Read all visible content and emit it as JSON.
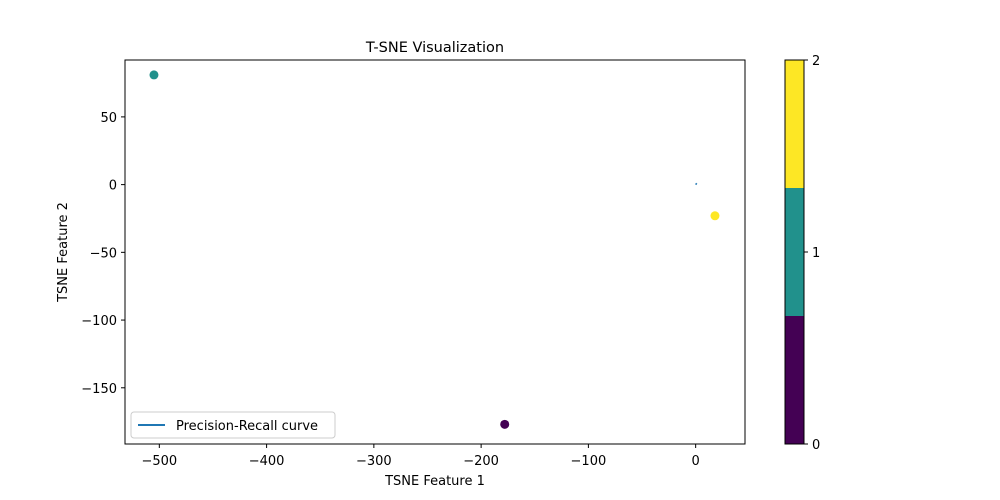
{
  "chart_data": {
    "type": "scatter",
    "title": "T-SNE Visualization",
    "xlabel": "TSNE Feature 1",
    "ylabel": "TSNE Feature 2",
    "xlim": [
      -532,
      46
    ],
    "ylim": [
      -191.5,
      92
    ],
    "xticks": [
      -500,
      -400,
      -300,
      -200,
      -100,
      0
    ],
    "xtick_labels": [
      "−500",
      "−400",
      "−300",
      "−200",
      "−100",
      "0"
    ],
    "yticks": [
      -150,
      -100,
      -50,
      0,
      50
    ],
    "ytick_labels": [
      "−150",
      "−100",
      "−50",
      "0",
      "50"
    ],
    "grid": false,
    "legend": {
      "position": "lower-left",
      "entries": [
        "Precision-Recall curve"
      ]
    },
    "points": [
      {
        "x": -505,
        "y": 81,
        "label": 1
      },
      {
        "x": -178,
        "y": -177,
        "label": 0
      },
      {
        "x": 18,
        "y": -23,
        "label": 2
      }
    ],
    "series": [
      {
        "name": "Precision-Recall curve",
        "type": "line",
        "x": [
          0,
          0.5,
          1
        ],
        "y": [
          0,
          0.5,
          1
        ],
        "color": "#1f77b4"
      }
    ],
    "colorbar": {
      "min": 0,
      "max": 2,
      "ticks": [
        0,
        1,
        2
      ],
      "tick_labels": [
        "0",
        "1",
        "2"
      ],
      "colors": [
        "#440154",
        "#21918c",
        "#fde725"
      ]
    }
  }
}
